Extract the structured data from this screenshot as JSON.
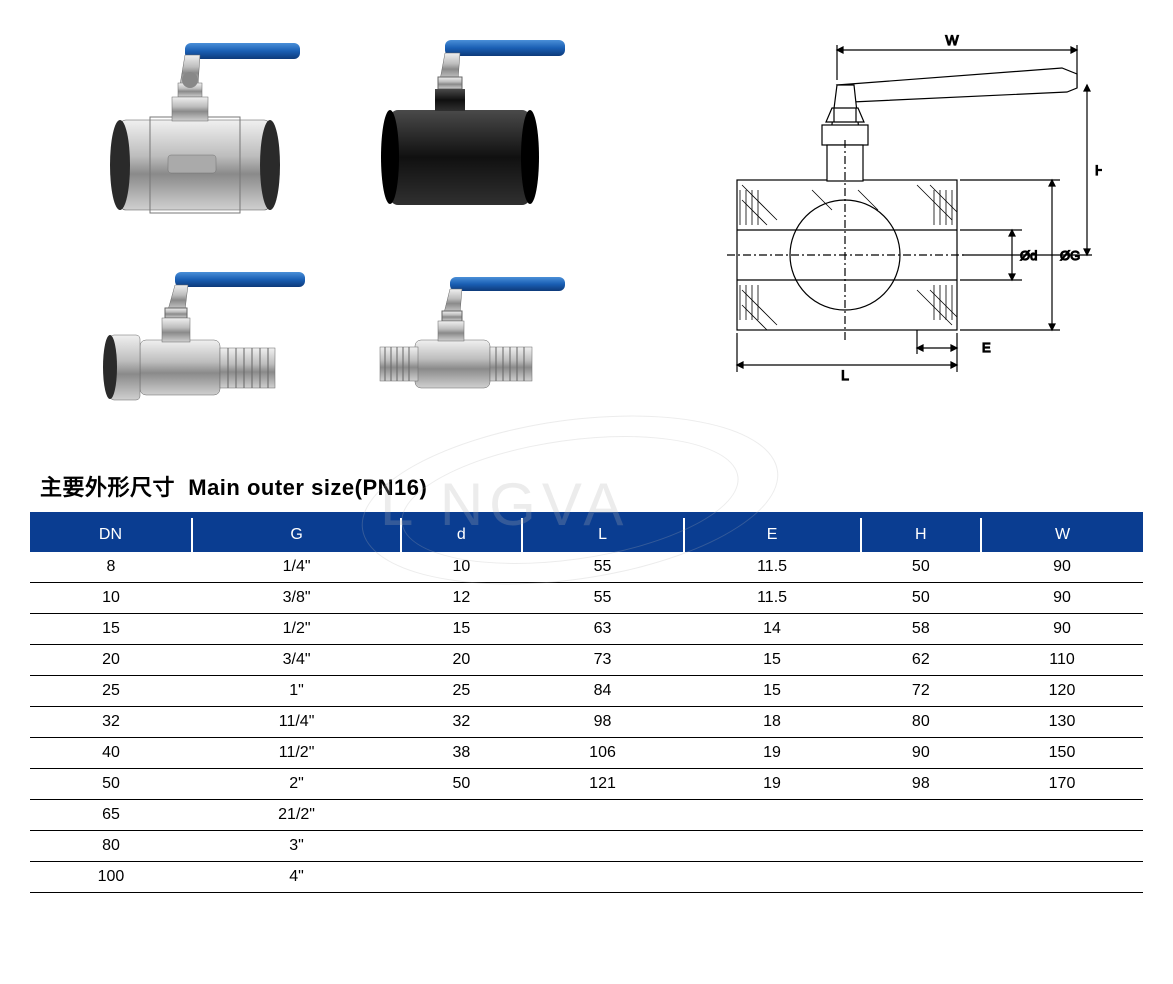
{
  "title_cn": "主要外形尺寸",
  "title_en": "Main outer size(PN16)",
  "watermark": "L   NGVA",
  "drawing_labels": {
    "W": "W",
    "H": "H",
    "d": "Ød",
    "G": "ØG",
    "L": "L",
    "E": "E"
  },
  "table": {
    "header_bg": "#0a3d91",
    "header_fg": "#ffffff",
    "columns": [
      "DN",
      "G",
      "d",
      "L",
      "E",
      "H",
      "W"
    ],
    "rows": [
      [
        "8",
        "1/4\"",
        "10",
        "55",
        "11.5",
        "50",
        "90"
      ],
      [
        "10",
        "3/8\"",
        "12",
        "55",
        "11.5",
        "50",
        "90"
      ],
      [
        "15",
        "1/2\"",
        "15",
        "63",
        "14",
        "58",
        "90"
      ],
      [
        "20",
        "3/4\"",
        "20",
        "73",
        "15",
        "62",
        "110"
      ],
      [
        "25",
        "1\"",
        "25",
        "84",
        "15",
        "72",
        "120"
      ],
      [
        "32",
        "11/4\"",
        "32",
        "98",
        "18",
        "80",
        "130"
      ],
      [
        "40",
        "11/2\"",
        "38",
        "106",
        "19",
        "90",
        "150"
      ],
      [
        "50",
        "2\"",
        "50",
        "121",
        "19",
        "98",
        "170"
      ],
      [
        "65",
        "21/2\"",
        "",
        "",
        "",
        "",
        ""
      ],
      [
        "80",
        "3\"",
        "",
        "",
        "",
        "",
        ""
      ],
      [
        "100",
        "4\"",
        "",
        "",
        "",
        "",
        ""
      ]
    ]
  },
  "colors": {
    "handle_blue": "#1a5fb4",
    "steel_light": "#c8c8c8",
    "steel_mid": "#9a9a9a",
    "steel_dark": "#555555",
    "black_body": "#1a1a1a",
    "drawing_line": "#000000",
    "hatch": "#000000"
  }
}
